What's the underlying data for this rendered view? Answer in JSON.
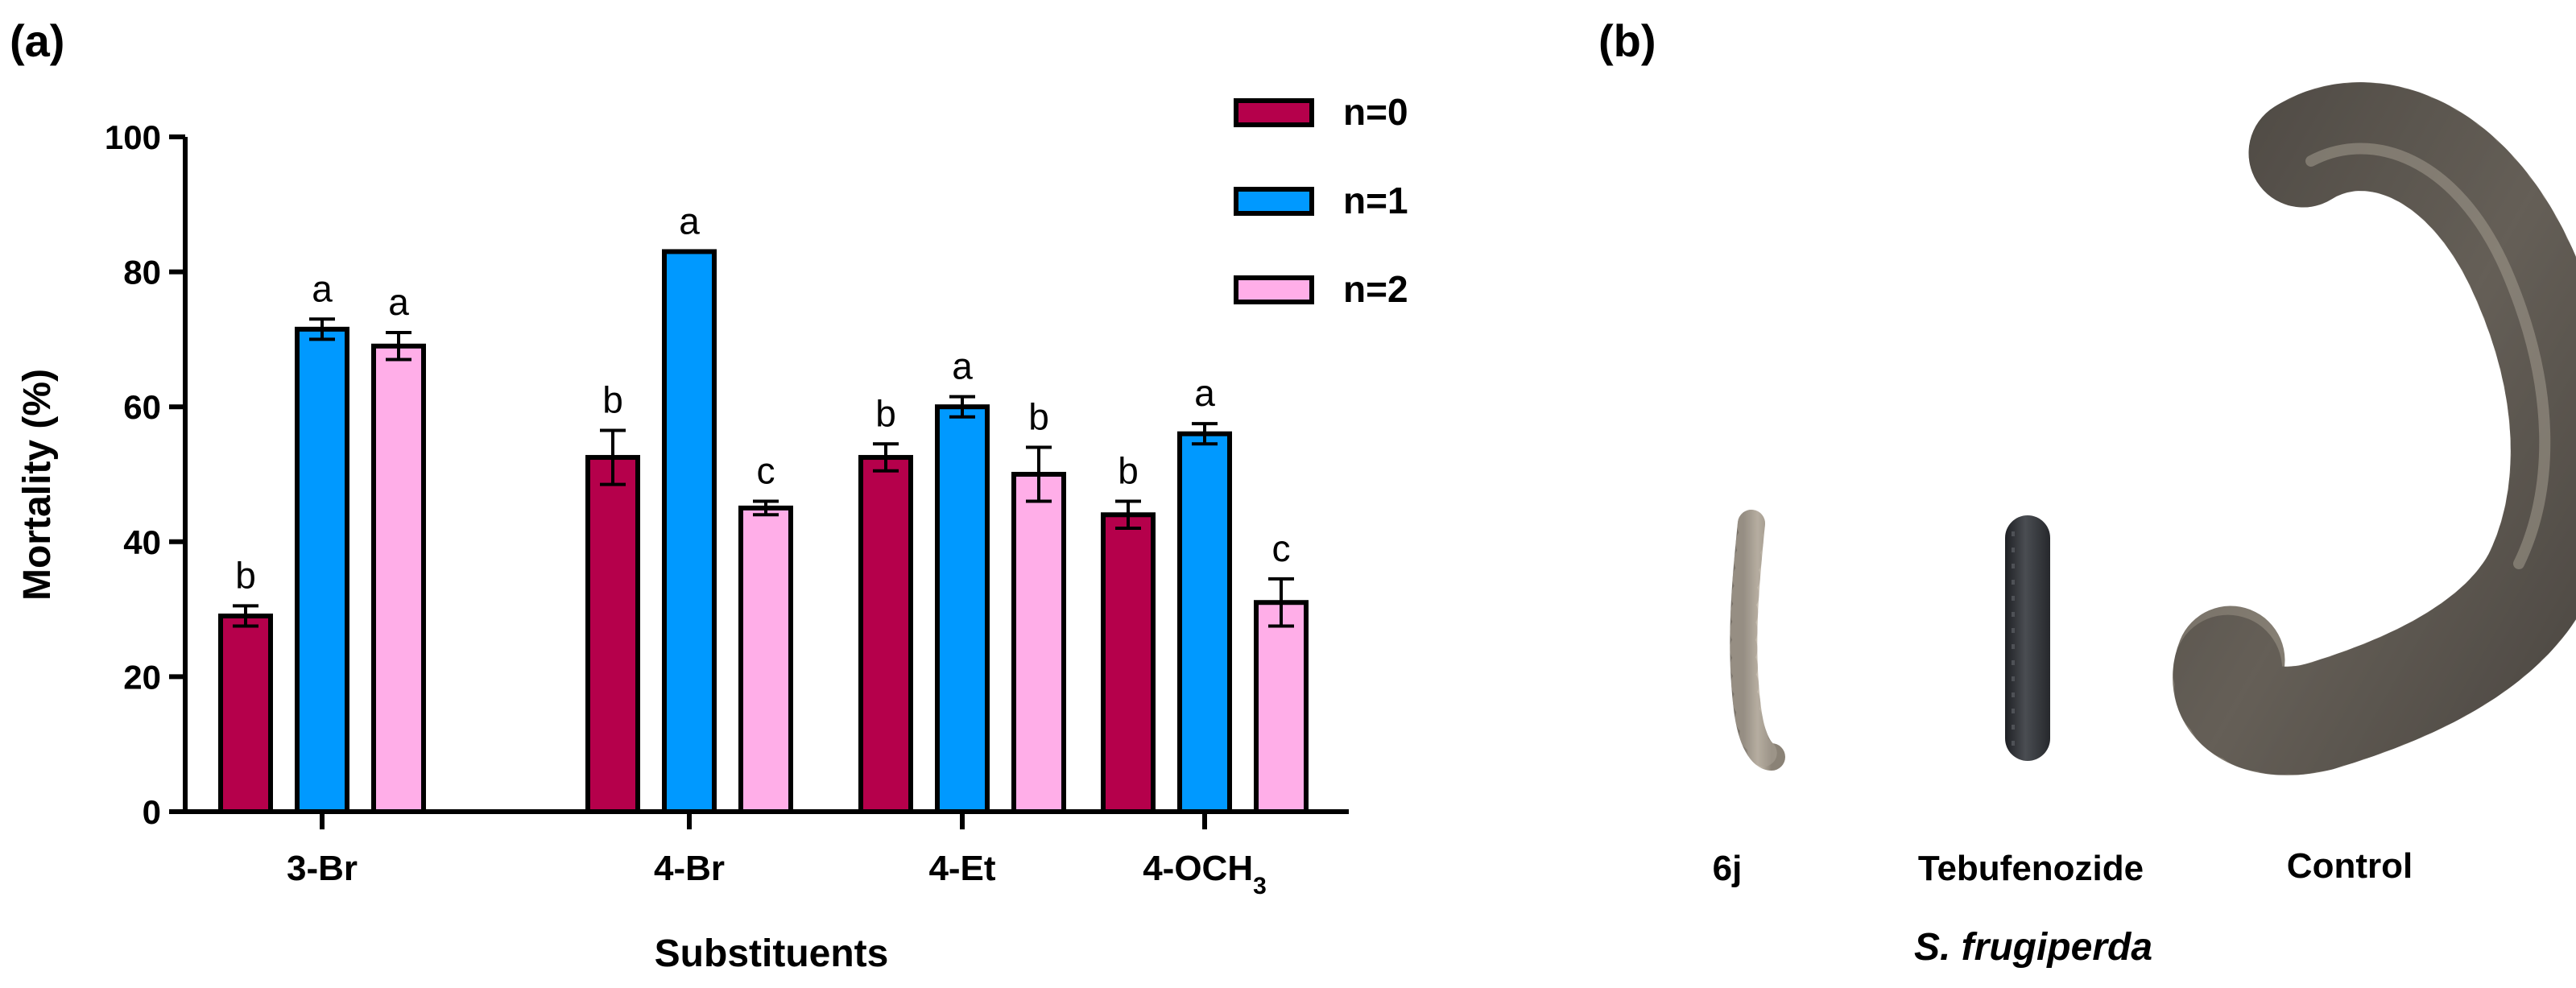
{
  "panel_a_label": "(a)",
  "panel_b_label": "(b)",
  "chart_data": {
    "type": "bar",
    "title": "",
    "xlabel": "Substituents",
    "ylabel": "Mortality (%)",
    "ylim": [
      0,
      100
    ],
    "yticks": [
      "0",
      "20",
      "40",
      "60",
      "80",
      "100"
    ],
    "categories": [
      {
        "label": "3-Br",
        "sub": ""
      },
      {
        "label": "4-Br",
        "sub": ""
      },
      {
        "label": "4-Et",
        "sub": ""
      },
      {
        "label": "4-OCH",
        "sub": "3"
      }
    ],
    "series": [
      {
        "name": "n=0",
        "color": "#b5004b",
        "values": [
          29,
          52.5,
          52.5,
          44
        ],
        "errors": [
          1.5,
          4,
          2,
          2
        ],
        "letters": [
          "b",
          "b",
          "b",
          "b"
        ]
      },
      {
        "name": "n=1",
        "color": "#0099ff",
        "values": [
          71.5,
          83,
          60,
          56
        ],
        "errors": [
          1.5,
          0,
          1.5,
          1.5
        ],
        "letters": [
          "a",
          "a",
          "a",
          "a"
        ]
      },
      {
        "name": "n=2",
        "color": "#ffaee8",
        "values": [
          69,
          45,
          50,
          31
        ],
        "errors": [
          2,
          1,
          4,
          3.5
        ],
        "letters": [
          "a",
          "c",
          "b",
          "c"
        ]
      }
    ],
    "legend_position": "top-right"
  },
  "photo": {
    "specimens": [
      "6j",
      "Tebufenozide",
      "Control"
    ],
    "species": "S. frugiperda"
  }
}
